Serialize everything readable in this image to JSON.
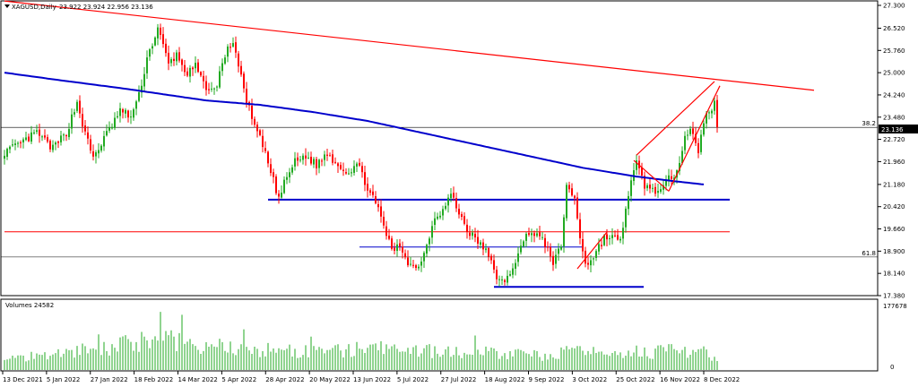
{
  "chart_data": {
    "type": "candlestick",
    "header": {
      "symbol_label": "XAGUSD,Daily",
      "ohlc": "23.922 23.924 22.956 23.136"
    },
    "colors": {
      "background": "#ffffff",
      "bull": "#22aa22",
      "bear": "#ff0000",
      "ma": "#0000cc",
      "trendline": "#ff0000",
      "support": "#0000cc",
      "grid_line": "#000000"
    },
    "price_axis": {
      "ticks": [
        "27.300",
        "26.520",
        "25.760",
        "25.000",
        "24.240",
        "23.480",
        "22.720",
        "21.960",
        "21.180",
        "20.420",
        "19.660",
        "18.900",
        "18.140",
        "17.380"
      ],
      "min": 17.38,
      "max": 27.3,
      "current_price_label": "23.136",
      "current_price": 23.136
    },
    "date_axis": {
      "labels": [
        "13 Dec 2021",
        "5 Jan 2022",
        "27 Jan 2022",
        "18 Feb 2022",
        "14 Mar 2022",
        "5 Apr 2022",
        "28 Apr 2022",
        "20 May 2022",
        "13 Jun 2022",
        "5 Jul 2022",
        "27 Jul 2022",
        "18 Aug 2022",
        "9 Sep 2022",
        "3 Oct 2022",
        "25 Oct 2022",
        "16 Nov 2022",
        "8 Dec 2022"
      ]
    },
    "fib_levels": [
      {
        "label": "38.2",
        "price": 23.13
      },
      {
        "label": "61.8",
        "price": 18.7
      }
    ],
    "horizontal_lines": [
      {
        "price": 19.56,
        "color": "#ff0000",
        "from_bar": 0,
        "to_bar": 263
      },
      {
        "price": 20.66,
        "color": "#0000cc",
        "from_bar": 98,
        "to_bar": 263,
        "width": 2
      },
      {
        "price": 19.04,
        "color": "#0000cc",
        "from_bar": 132,
        "to_bar": 208,
        "width": 1
      },
      {
        "price": 17.68,
        "color": "#0000cc",
        "from_bar": 182,
        "to_bar": 231,
        "width": 2
      }
    ],
    "trendlines": [
      {
        "from": [
          0,
          27.45
        ],
        "to": [
          301,
          24.4
        ],
        "color": "#ff0000"
      },
      {
        "from": [
          235,
          22.18
        ],
        "to": [
          264,
          24.7
        ],
        "color": "#ff0000"
      },
      {
        "from": [
          247,
          20.95
        ],
        "to": [
          266,
          24.55
        ],
        "color": "#ff0000"
      },
      {
        "from": [
          234,
          22.0
        ],
        "to": [
          247,
          20.95
        ],
        "color": "#ff0000"
      },
      {
        "from": [
          213,
          18.3
        ],
        "to": [
          224,
          19.55
        ],
        "color": "#ff0000"
      }
    ],
    "moving_average": {
      "points": [
        [
          0,
          25.0
        ],
        [
          20,
          24.75
        ],
        [
          45,
          24.45
        ],
        [
          75,
          24.05
        ],
        [
          95,
          23.9
        ],
        [
          115,
          23.65
        ],
        [
          135,
          23.35
        ],
        [
          155,
          22.95
        ],
        [
          175,
          22.55
        ],
        [
          195,
          22.15
        ],
        [
          215,
          21.75
        ],
        [
          235,
          21.45
        ],
        [
          250,
          21.28
        ],
        [
          260,
          21.18
        ]
      ]
    },
    "price_anchors": [
      [
        0,
        22.3
      ],
      [
        5,
        22.5
      ],
      [
        12,
        22.95
      ],
      [
        18,
        22.4
      ],
      [
        23,
        22.95
      ],
      [
        27,
        24.0
      ],
      [
        30,
        22.9
      ],
      [
        33,
        22.1
      ],
      [
        38,
        22.9
      ],
      [
        43,
        23.7
      ],
      [
        47,
        23.5
      ],
      [
        50,
        24.2
      ],
      [
        53,
        25.5
      ],
      [
        57,
        26.5
      ],
      [
        61,
        25.3
      ],
      [
        64,
        25.6
      ],
      [
        68,
        24.95
      ],
      [
        71,
        25.2
      ],
      [
        74,
        24.6
      ],
      [
        78,
        24.35
      ],
      [
        82,
        25.6
      ],
      [
        85,
        26.1
      ],
      [
        88,
        24.8
      ],
      [
        92,
        23.4
      ],
      [
        96,
        22.5
      ],
      [
        99,
        21.6
      ],
      [
        102,
        20.7
      ],
      [
        105,
        21.45
      ],
      [
        108,
        21.95
      ],
      [
        112,
        22.15
      ],
      [
        116,
        21.85
      ],
      [
        120,
        22.25
      ],
      [
        124,
        21.85
      ],
      [
        128,
        21.6
      ],
      [
        131,
        21.9
      ],
      [
        134,
        21.3
      ],
      [
        138,
        20.5
      ],
      [
        141,
        19.8
      ],
      [
        144,
        18.9
      ],
      [
        147,
        19.1
      ],
      [
        150,
        18.55
      ],
      [
        153,
        18.3
      ],
      [
        156,
        18.8
      ],
      [
        160,
        20.1
      ],
      [
        163,
        20.3
      ],
      [
        166,
        20.85
      ],
      [
        169,
        20.2
      ],
      [
        172,
        19.65
      ],
      [
        175,
        19.3
      ],
      [
        178,
        19.05
      ],
      [
        180,
        18.7
      ],
      [
        183,
        18.05
      ],
      [
        186,
        17.75
      ],
      [
        189,
        18.4
      ],
      [
        192,
        19.0
      ],
      [
        195,
        19.6
      ],
      [
        198,
        19.45
      ],
      [
        201,
        19.15
      ],
      [
        204,
        18.55
      ],
      [
        207,
        19.0
      ],
      [
        209,
        21.2
      ],
      [
        212,
        20.65
      ],
      [
        214,
        19.4
      ],
      [
        216,
        18.5
      ],
      [
        218,
        18.55
      ],
      [
        220,
        18.9
      ],
      [
        223,
        19.35
      ],
      [
        226,
        19.4
      ],
      [
        229,
        19.2
      ],
      [
        232,
        20.9
      ],
      [
        235,
        21.9
      ],
      [
        238,
        21.15
      ],
      [
        241,
        21.0
      ],
      [
        244,
        20.95
      ],
      [
        247,
        21.35
      ],
      [
        249,
        21.55
      ],
      [
        251,
        22.05
      ],
      [
        253,
        22.85
      ],
      [
        255,
        23.1
      ],
      [
        258,
        22.2
      ],
      [
        260,
        23.35
      ],
      [
        262,
        23.72
      ],
      [
        264,
        23.92
      ],
      [
        265,
        23.136
      ]
    ],
    "volumes": {
      "label": "Volumes 24582",
      "axis_max_label": "177678",
      "axis_min_label": "0",
      "max": 177678,
      "anchors": [
        [
          0,
          30000
        ],
        [
          10,
          45000
        ],
        [
          20,
          55000
        ],
        [
          30,
          62000
        ],
        [
          40,
          70000
        ],
        [
          50,
          85000
        ],
        [
          57,
          110000
        ],
        [
          62,
          90000
        ],
        [
          70,
          75000
        ],
        [
          80,
          70000
        ],
        [
          90,
          62000
        ],
        [
          100,
          60000
        ],
        [
          110,
          56000
        ],
        [
          120,
          55000
        ],
        [
          130,
          62000
        ],
        [
          140,
          65000
        ],
        [
          150,
          60000
        ],
        [
          160,
          58000
        ],
        [
          170,
          52000
        ],
        [
          180,
          55000
        ],
        [
          190,
          48000
        ],
        [
          200,
          45000
        ],
        [
          210,
          55000
        ],
        [
          220,
          52000
        ],
        [
          230,
          60000
        ],
        [
          240,
          55000
        ],
        [
          250,
          58000
        ],
        [
          260,
          55000
        ],
        [
          265,
          24582
        ]
      ],
      "peaks": [
        [
          58,
          160000
        ],
        [
          66,
          152000
        ],
        [
          89,
          112000
        ],
        [
          35,
          98000
        ],
        [
          51,
          105000
        ],
        [
          114,
          92000
        ],
        [
          175,
          95000
        ]
      ]
    }
  }
}
